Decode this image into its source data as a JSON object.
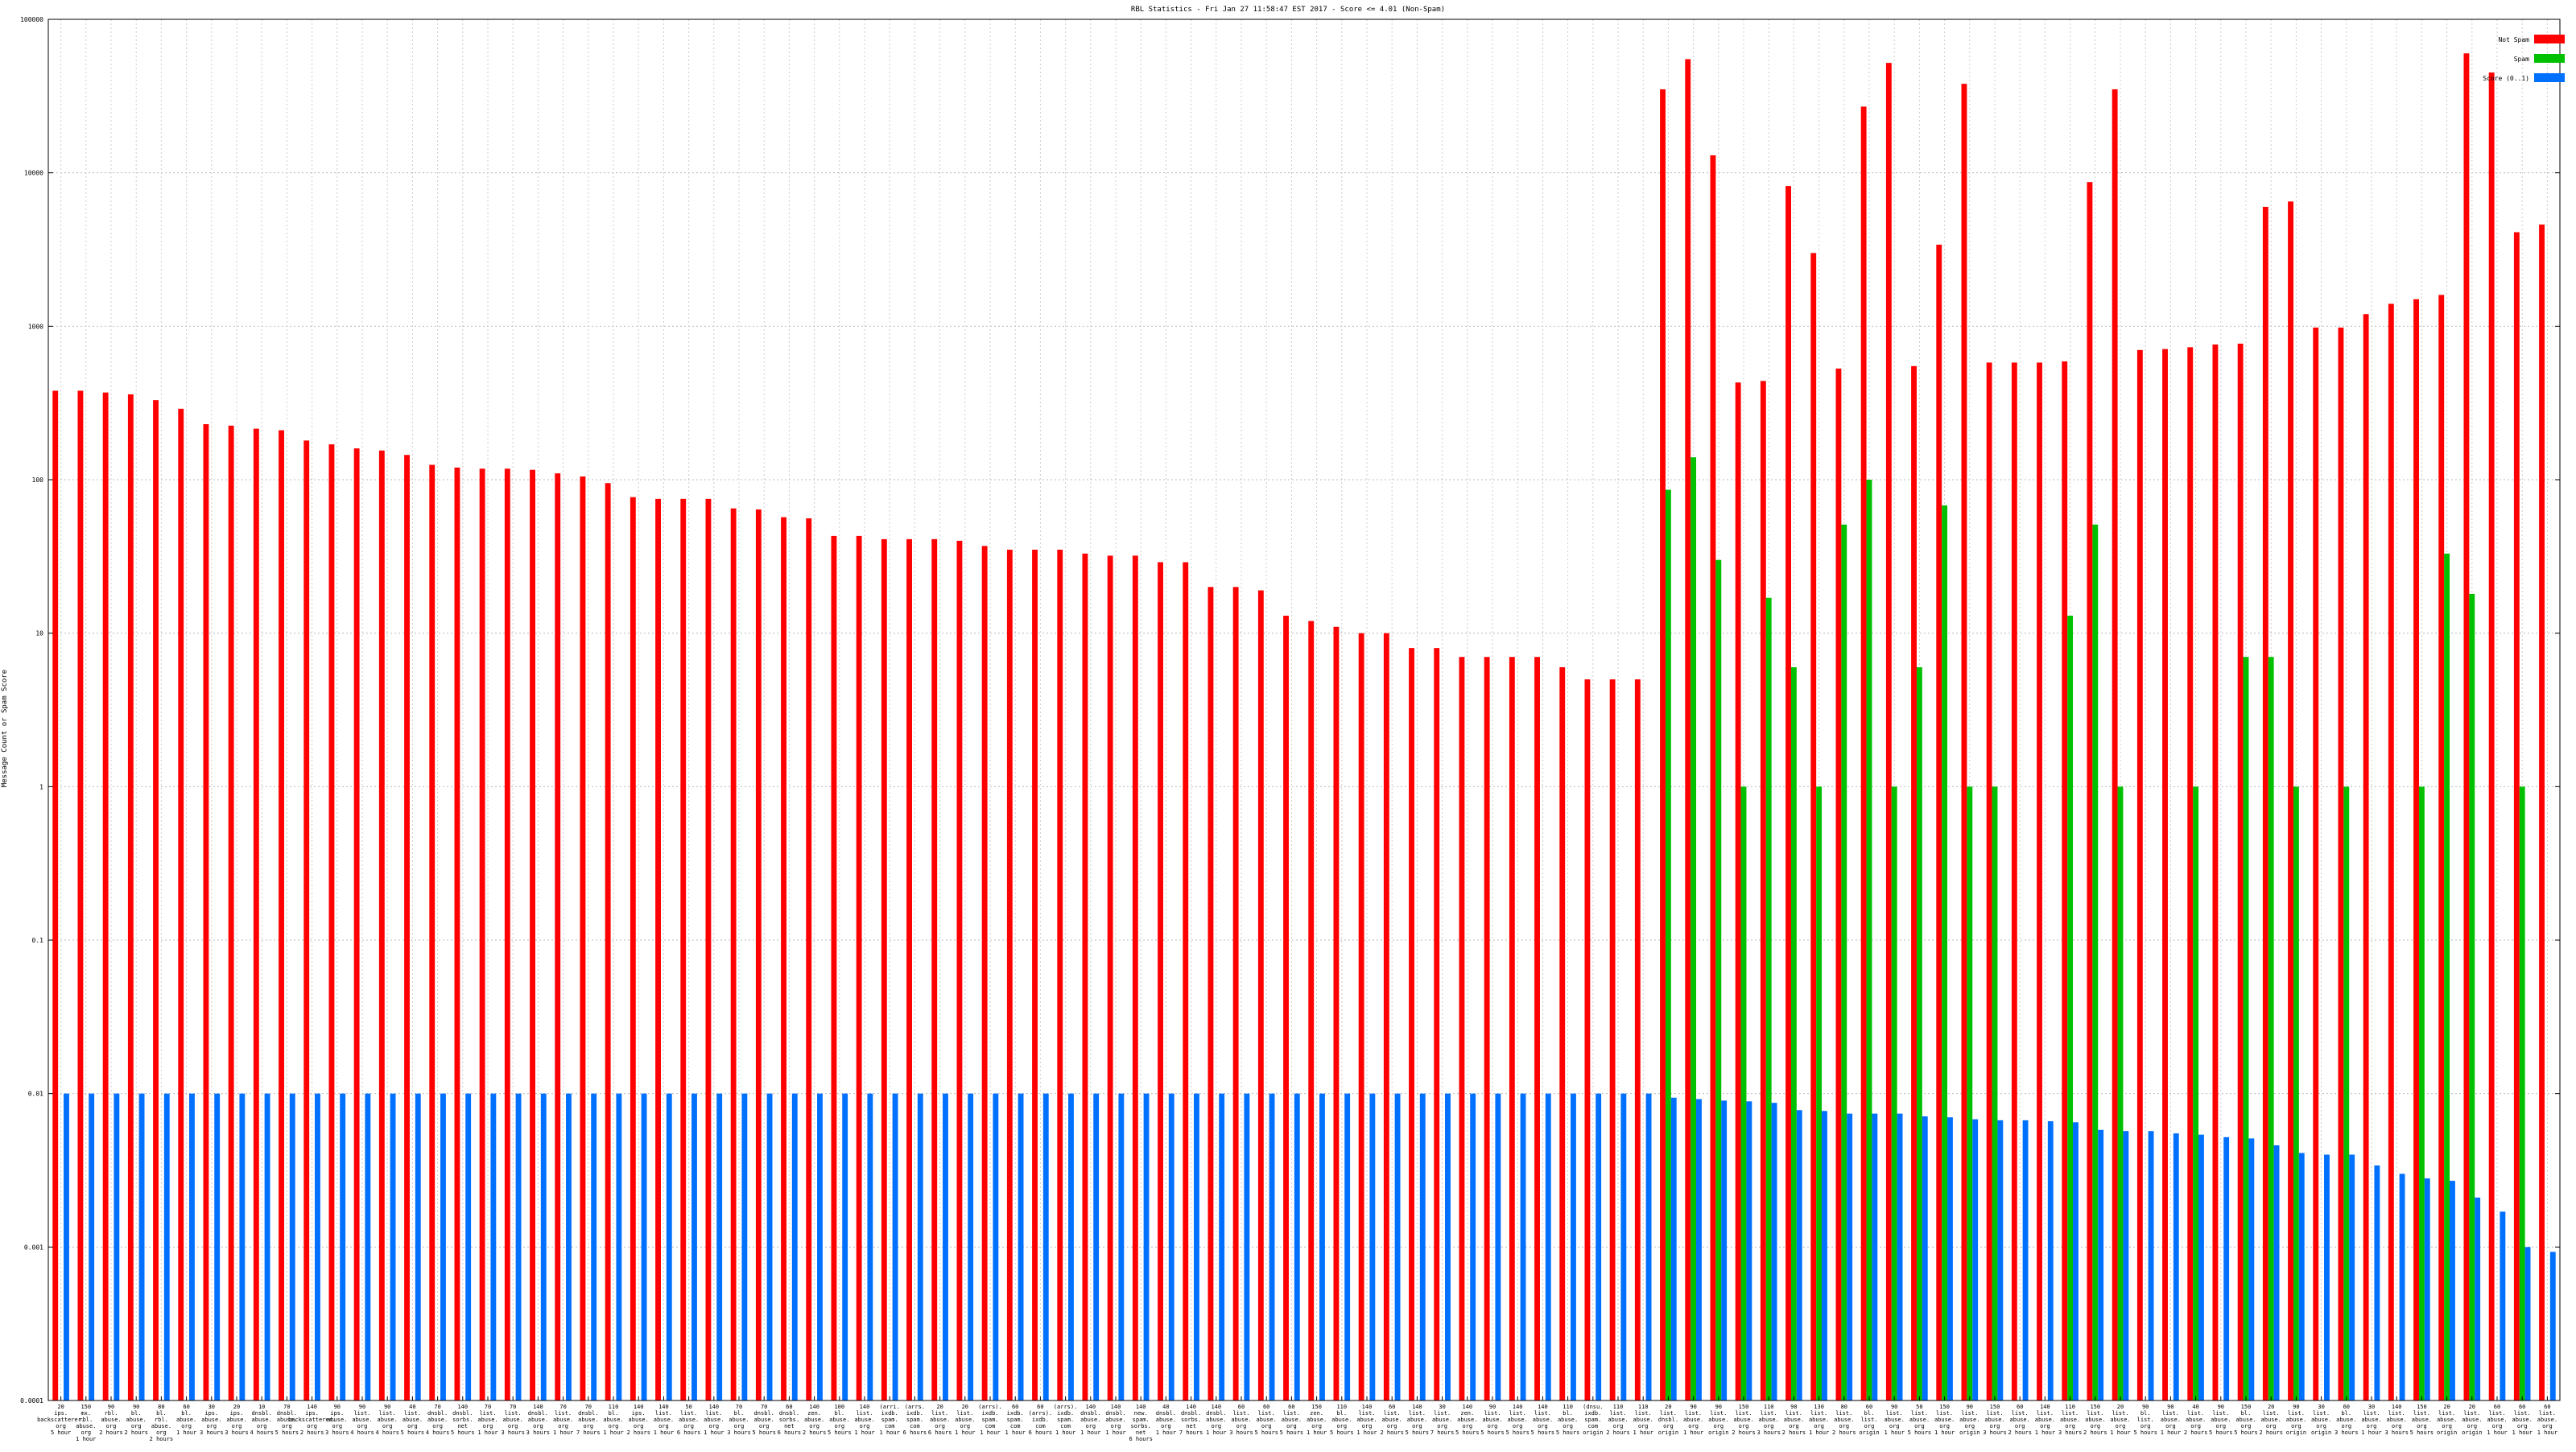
{
  "chart_data": {
    "type": "bar",
    "title": "RBL Statistics - Fri Jan 27 11:58:47 EST 2017 - Score <= 4.01 (Non-Spam)",
    "xlabel": "",
    "ylabel": "Message Count or Spam Score",
    "scale": "log",
    "ylim": [
      0.0001,
      100000
    ],
    "y_ticks": [
      "0.0001",
      "0.001",
      "0.01",
      "0.1",
      "1",
      "10",
      "100",
      "1000",
      "10000",
      "100000"
    ],
    "grid": true,
    "legend_position": "top-right",
    "series": [
      {
        "name": "Not Spam",
        "color": "#ff0000",
        "values": [
          380,
          380,
          370,
          360,
          330,
          290,
          230,
          225,
          215,
          210,
          180,
          170,
          160,
          155,
          145,
          125,
          120,
          118,
          118,
          116,
          110,
          105,
          95,
          77,
          75,
          75,
          75,
          65,
          64,
          57,
          56,
          43,
          43,
          41,
          41,
          41,
          40,
          37,
          35,
          35,
          35,
          33,
          32,
          32,
          29,
          29,
          20,
          20,
          19,
          13,
          12,
          11,
          10,
          10,
          8,
          8,
          7,
          7,
          7,
          7,
          6,
          5,
          5,
          5,
          35000,
          55000,
          13000,
          430,
          440,
          8200,
          3000,
          530,
          27000,
          52000,
          550,
          3400,
          38000,
          580,
          580,
          580,
          590,
          8700,
          35000,
          700,
          710,
          730,
          760,
          770,
          6000,
          6500,
          980,
          980,
          1200,
          1400,
          1500,
          1600,
          60000,
          45000,
          4100,
          4600
        ]
      },
      {
        "name": "Spam",
        "color": "#00c000",
        "values": [
          null,
          null,
          null,
          null,
          null,
          null,
          null,
          null,
          null,
          null,
          null,
          null,
          null,
          null,
          null,
          null,
          null,
          null,
          null,
          null,
          null,
          null,
          null,
          null,
          null,
          null,
          null,
          null,
          null,
          null,
          null,
          null,
          null,
          null,
          null,
          null,
          null,
          null,
          null,
          null,
          null,
          null,
          null,
          null,
          null,
          null,
          null,
          null,
          null,
          null,
          null,
          null,
          null,
          null,
          null,
          null,
          null,
          null,
          null,
          null,
          null,
          null,
          null,
          null,
          86,
          140,
          30,
          1,
          17,
          6,
          1,
          51,
          100,
          1,
          6,
          68,
          1,
          1,
          null,
          null,
          13,
          51,
          1,
          null,
          null,
          1,
          null,
          7,
          7,
          1,
          null,
          1,
          null,
          null,
          1,
          33,
          18,
          null,
          1,
          null
        ]
      },
      {
        "name": "Score (0..1)",
        "color": "#0070ff",
        "values": [
          0.01,
          0.01,
          0.01,
          0.01,
          0.01,
          0.01,
          0.01,
          0.01,
          0.01,
          0.01,
          0.01,
          0.01,
          0.01,
          0.01,
          0.01,
          0.01,
          0.01,
          0.01,
          0.01,
          0.01,
          0.01,
          0.01,
          0.01,
          0.01,
          0.01,
          0.01,
          0.01,
          0.01,
          0.01,
          0.01,
          0.01,
          0.01,
          0.01,
          0.01,
          0.01,
          0.01,
          0.01,
          0.01,
          0.01,
          0.01,
          0.01,
          0.01,
          0.01,
          0.01,
          0.01,
          0.01,
          0.01,
          0.01,
          0.01,
          0.01,
          0.01,
          0.01,
          0.01,
          0.01,
          0.01,
          0.01,
          0.01,
          0.01,
          0.01,
          0.01,
          0.01,
          0.01,
          0.01,
          0.01,
          0.0094,
          0.0092,
          0.009,
          0.0089,
          0.0087,
          0.0078,
          0.0077,
          0.0074,
          0.0074,
          0.0074,
          0.0071,
          0.007,
          0.0068,
          0.0067,
          0.0067,
          0.0066,
          0.0065,
          0.0058,
          0.0057,
          0.0057,
          0.0055,
          0.0054,
          0.0052,
          0.0051,
          0.0046,
          0.0041,
          0.004,
          0.004,
          0.0034,
          0.003,
          0.0028,
          0.0027,
          0.0021,
          0.0017,
          0.001,
          0.00093
        ]
      }
    ],
    "categories": [
      [
        "20",
        "ips.",
        "backscatterer.",
        "org",
        "5 hour"
      ],
      [
        "150",
        "mx.",
        "rbl.",
        "abuse.",
        "org",
        "1 hour"
      ],
      [
        "90",
        "rbl.",
        "abuse.",
        "org",
        "2 hours"
      ],
      [
        "90",
        "bl.",
        "abuse.",
        "org",
        "2 hours"
      ],
      [
        "80",
        "bl.",
        "rbl.",
        "abuse.",
        "org",
        "2 hours"
      ],
      [
        "60",
        "bl.",
        "abuse.",
        "org",
        "1 hour"
      ],
      [
        "30",
        "ips.",
        "abuse.",
        "org",
        "3 hours"
      ],
      [
        "20",
        "ips.",
        "abuse.",
        "org",
        "3 hours"
      ],
      [
        "10",
        "dnsbl.",
        "abuse.",
        "org",
        "4 hours"
      ],
      [
        "70",
        "dnsbl.",
        "abuse.",
        "org",
        "5 hours"
      ],
      [
        "140",
        "ips.",
        "backscatterer.",
        "org",
        "2 hours"
      ],
      [
        "90",
        "ips.",
        "abuse.",
        "org",
        "3 hours"
      ],
      [
        "90",
        "list.",
        "abuse.",
        "org",
        "4 hours"
      ],
      [
        "90",
        "list.",
        "abuse.",
        "org",
        "4 hours"
      ],
      [
        "40",
        "list.",
        "abuse.",
        "org",
        "5 hours"
      ],
      [
        "70",
        "dnsbl.",
        "abuse.",
        "org",
        "4 hours"
      ],
      [
        "140",
        "dnsbl.",
        "sorbs.",
        "net",
        "5 hours"
      ],
      [
        "70",
        "list.",
        "abuse.",
        "org",
        "1 hour"
      ],
      [
        "70",
        "list.",
        "abuse.",
        "org",
        "3 hours"
      ],
      [
        "140",
        "dnsbl.",
        "abuse.",
        "org",
        "3 hours"
      ],
      [
        "70",
        "list.",
        "abuse.",
        "org",
        "1 hour"
      ],
      [
        "70",
        "dnsbl.",
        "abuse.",
        "org",
        "7 hours"
      ],
      [
        "110",
        "bl.",
        "abuse.",
        "org",
        "1 hour"
      ],
      [
        "140",
        "ips.",
        "abuse.",
        "org",
        "2 hours"
      ],
      [
        "140",
        "list.",
        "abuse.",
        "org",
        "1 hour"
      ],
      [
        "50",
        "list.",
        "abuse.",
        "org",
        "6 hours"
      ],
      [
        "140",
        "list.",
        "abuse.",
        "org",
        "1 hour"
      ],
      [
        "70",
        "bl.",
        "abuse.",
        "org",
        "3 hours"
      ],
      [
        "70",
        "dnsbl.",
        "abuse.",
        "org",
        "5 hours"
      ],
      [
        "60",
        "dnsbl.",
        "sorbs.",
        "net",
        "6 hours"
      ],
      [
        "140",
        "zen.",
        "abuse.",
        "org",
        "2 hours"
      ],
      [
        "100",
        "bl.",
        "abuse.",
        "org",
        "5 hours"
      ],
      [
        "140",
        "list.",
        "abuse.",
        "org",
        "1 hour"
      ],
      [
        "(arri.",
        "ixdb.",
        "spam.",
        "com",
        "1 hour"
      ],
      [
        "(arrs.",
        "ixdb.",
        "spam.",
        "com",
        "6 hours"
      ],
      [
        "20",
        "list.",
        "abuse.",
        "org",
        "6 hours"
      ],
      [
        "20",
        "list.",
        "abuse.",
        "org",
        "1 hour"
      ],
      [
        "(arrs).",
        "ixdb.",
        "spam.",
        "com",
        "1 hour"
      ],
      [
        "60",
        "ixdb.",
        "spam.",
        "com",
        "1 hour"
      ],
      [
        "60",
        "(arrs).",
        "ixdb.",
        "com",
        "6 hours"
      ],
      [
        "(arrs).",
        "ixdb.",
        "spam.",
        "com",
        "1 hour"
      ],
      [
        "140",
        "dnsbl.",
        "abuse.",
        "org",
        "1 hour"
      ],
      [
        "140",
        "dnsbl.",
        "abuse.",
        "org",
        "1 hour"
      ],
      [
        "140",
        "new.",
        "spam.",
        "sorbs.",
        "net",
        "6 hours"
      ],
      [
        "40",
        "dnsbl.",
        "abuse.",
        "org",
        "1 hour"
      ],
      [
        "140",
        "dnsbl.",
        "sorbs.",
        "net",
        "7 hours"
      ],
      [
        "140",
        "dnsbl.",
        "abuse.",
        "org",
        "1 hour"
      ],
      [
        "60",
        "list.",
        "abuse.",
        "org",
        "3 hours"
      ],
      [
        "60",
        "list.",
        "abuse.",
        "org",
        "5 hours"
      ],
      [
        "60",
        "list.",
        "abuse.",
        "org",
        "5 hours"
      ],
      [
        "150",
        "zen.",
        "abuse.",
        "org",
        "1 hour"
      ],
      [
        "110",
        "bl.",
        "abuse.",
        "org",
        "5 hours"
      ],
      [
        "140",
        "list.",
        "abuse.",
        "org",
        "1 hour"
      ],
      [
        "60",
        "list.",
        "abuse.",
        "org",
        "2 hours"
      ],
      [
        "140",
        "list.",
        "abuse.",
        "org",
        "5 hours"
      ],
      [
        "30",
        "list.",
        "abuse.",
        "org",
        "7 hours"
      ],
      [
        "140",
        "zen.",
        "abuse.",
        "org",
        "5 hours"
      ],
      [
        "90",
        "list.",
        "abuse.",
        "org",
        "5 hours"
      ],
      [
        "140",
        "list.",
        "abuse.",
        "org",
        "5 hours"
      ],
      [
        "140",
        "list.",
        "abuse.",
        "org",
        "5 hours"
      ],
      [
        "110",
        "bl.",
        "abuse.",
        "org",
        "5 hours"
      ],
      [
        "(dnsu.",
        "ixdb.",
        "spam.",
        "com",
        "origin"
      ],
      [
        "110",
        "list.",
        "abuse.",
        "org",
        "2 hours"
      ],
      [
        "110",
        "list.",
        "abuse.",
        "org",
        "1 hour"
      ],
      [
        "20",
        "list.",
        "dnsbl.",
        "org",
        "origin"
      ],
      [
        "90",
        "list.",
        "abuse.",
        "org",
        "1 hour"
      ],
      [
        "90",
        "list.",
        "abuse.",
        "org",
        "origin"
      ],
      [
        "150",
        "list.",
        "abuse.",
        "org",
        "2 hours"
      ],
      [
        "110",
        "list.",
        "abuse.",
        "org",
        "3 hours"
      ],
      [
        "90",
        "list.",
        "abuse.",
        "org",
        "2 hours"
      ],
      [
        "130",
        "list.",
        "abuse.",
        "org",
        "1 hour"
      ],
      [
        "80",
        "list.",
        "abuse.",
        "org",
        "2 hours"
      ],
      [
        "60",
        "bl.",
        "list.",
        "org",
        "origin"
      ],
      [
        "90",
        "list.",
        "abuse.",
        "org",
        "1 hour"
      ],
      [
        "50",
        "list.",
        "abuse.",
        "org",
        "5 hours"
      ],
      [
        "150",
        "list.",
        "abuse.",
        "org",
        "1 hour"
      ],
      [
        "90",
        "list.",
        "abuse.",
        "org",
        "origin"
      ],
      [
        "150",
        "list.",
        "abuse.",
        "org",
        "3 hours"
      ],
      [
        "60",
        "list.",
        "abuse.",
        "org",
        "2 hours"
      ],
      [
        "140",
        "list.",
        "abuse.",
        "org",
        "1 hour"
      ],
      [
        "110",
        "list.",
        "abuse.",
        "org",
        "3 hours"
      ],
      [
        "150",
        "list.",
        "abuse.",
        "org",
        "2 hours"
      ],
      [
        "20",
        "list.",
        "abuse.",
        "org",
        "1 hour"
      ],
      [
        "90",
        "bl.",
        "list.",
        "org",
        "5 hours"
      ],
      [
        "90",
        "list.",
        "abuse.",
        "org",
        "1 hour"
      ],
      [
        "40",
        "list.",
        "abuse.",
        "org",
        "2 hours"
      ],
      [
        "90",
        "list.",
        "abuse.",
        "org",
        "5 hours"
      ],
      [
        "150",
        "bl.",
        "abuse.",
        "org",
        "5 hours"
      ],
      [
        "20",
        "list.",
        "abuse.",
        "org",
        "2 hours"
      ],
      [
        "90",
        "list.",
        "abuse.",
        "org",
        "origin"
      ],
      [
        "30",
        "list.",
        "abuse.",
        "org",
        "origin"
      ],
      [
        "60",
        "bl.",
        "abuse.",
        "org",
        "3 hours"
      ],
      [
        "30",
        "list.",
        "abuse.",
        "org",
        "1 hour"
      ],
      [
        "140",
        "list.",
        "abuse.",
        "org",
        "3 hours"
      ],
      [
        "150",
        "list.",
        "abuse.",
        "org",
        "5 hours"
      ],
      [
        "20",
        "list.",
        "abuse.",
        "org",
        "origin"
      ],
      [
        "20",
        "list.",
        "abuse.",
        "org",
        "origin"
      ],
      [
        "60",
        "list.",
        "abuse.",
        "org",
        "1 hour"
      ],
      [
        "60",
        "list.",
        "abuse.",
        "org",
        "1 hour"
      ],
      [
        "60",
        "list.",
        "abuse.",
        "org",
        "1 hour"
      ]
    ]
  }
}
